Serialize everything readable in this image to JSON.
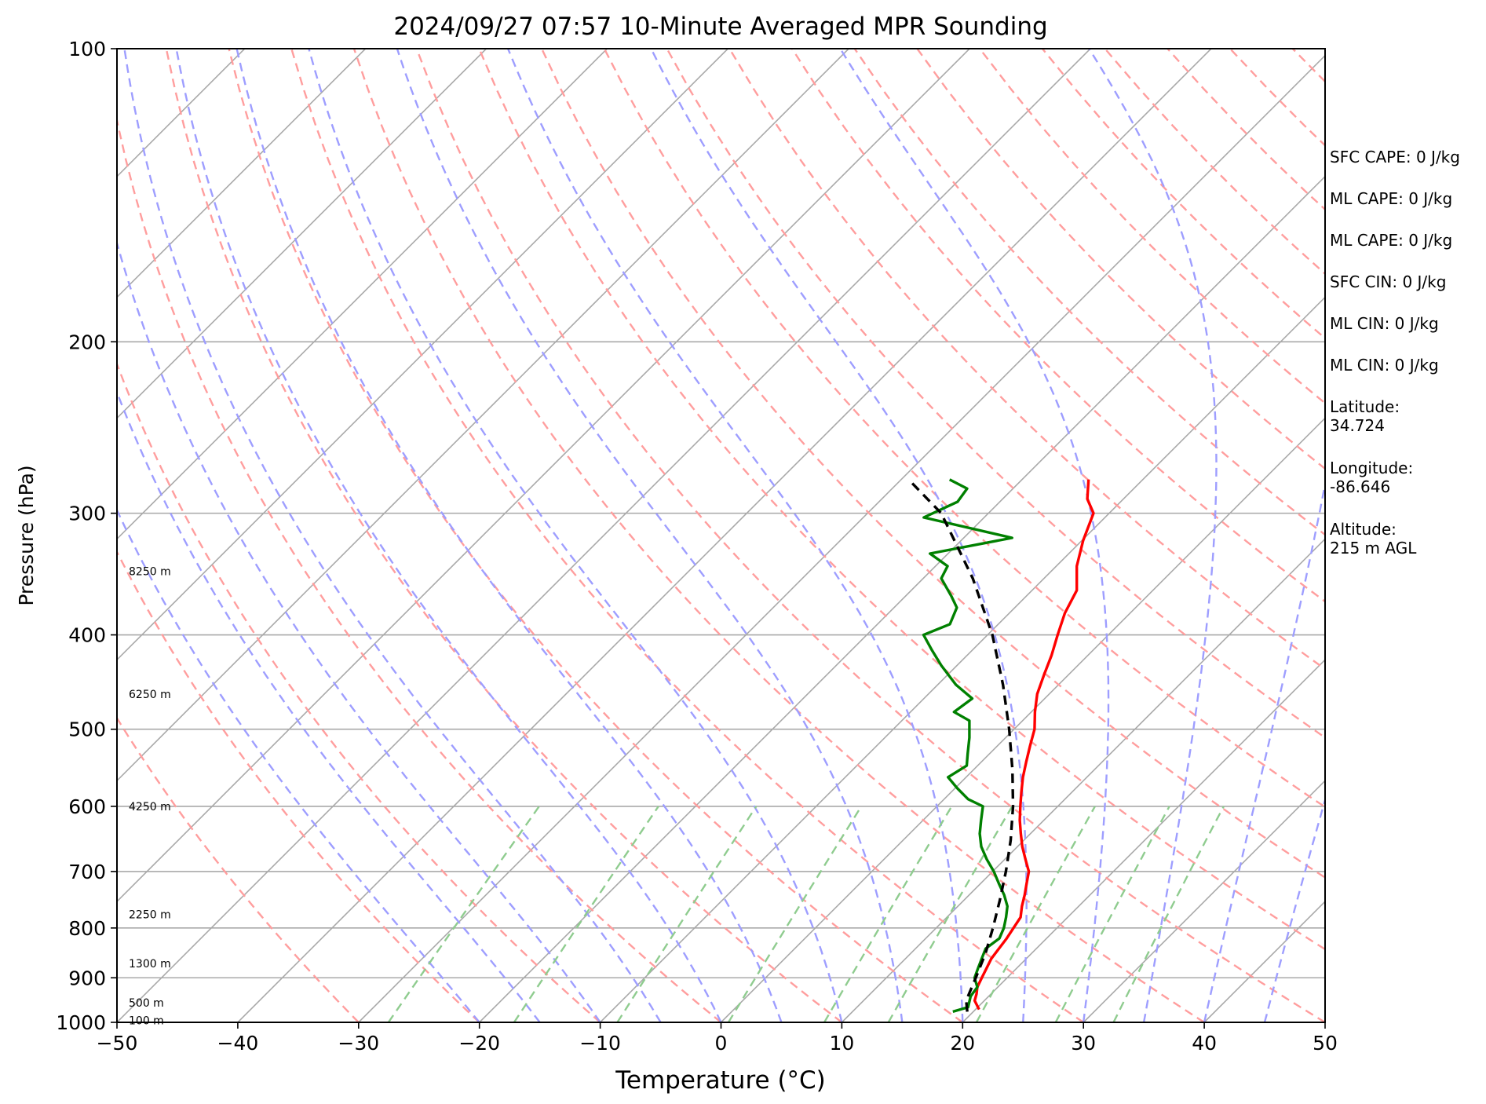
{
  "chart_data": {
    "type": "line",
    "chart_kind": "skew-T log-P sounding",
    "title": "2024/09/27 07:57 10-Minute Averaged MPR Sounding",
    "xlabel": "Temperature (°C)",
    "ylabel": "Pressure (hPa)",
    "xlim": [
      -50,
      50
    ],
    "ylim": [
      1000,
      100
    ],
    "y_scale": "log",
    "grid": true,
    "x_ticks": [
      "−50",
      "−40",
      "−30",
      "−20",
      "−10",
      "0",
      "10",
      "20",
      "30",
      "40",
      "50"
    ],
    "y_ticks": [
      "100",
      "200",
      "300",
      "400",
      "500",
      "600",
      "700",
      "800",
      "900",
      "1000"
    ],
    "height_labels": [
      {
        "p": 995,
        "label": "100 m"
      },
      {
        "p": 955,
        "label": "500 m"
      },
      {
        "p": 870,
        "label": "1300 m"
      },
      {
        "p": 775,
        "label": "2250 m"
      },
      {
        "p": 600,
        "label": "4250 m"
      },
      {
        "p": 460,
        "label": "6250 m"
      },
      {
        "p": 344,
        "label": "8250 m"
      }
    ],
    "series": [
      {
        "role": "temperature",
        "color": "#ff0000",
        "points": [
          [
            20.3,
            970
          ],
          [
            19.2,
            950
          ],
          [
            18.8,
            935
          ],
          [
            18.3,
            920
          ],
          [
            17.9,
            900
          ],
          [
            17.5,
            880
          ],
          [
            17.1,
            860
          ],
          [
            16.9,
            840
          ],
          [
            16.7,
            820
          ],
          [
            16.4,
            800
          ],
          [
            16.1,
            780
          ],
          [
            15.3,
            760
          ],
          [
            14.6,
            740
          ],
          [
            13.8,
            720
          ],
          [
            13.0,
            700
          ],
          [
            11.7,
            680
          ],
          [
            10.4,
            660
          ],
          [
            9.2,
            640
          ],
          [
            8.0,
            620
          ],
          [
            6.9,
            600
          ],
          [
            5.8,
            580
          ],
          [
            4.7,
            560
          ],
          [
            3.7,
            540
          ],
          [
            2.7,
            520
          ],
          [
            1.7,
            500
          ],
          [
            0.3,
            480
          ],
          [
            -1.0,
            460
          ],
          [
            -2.0,
            440
          ],
          [
            -3.0,
            420
          ],
          [
            -4.2,
            400
          ],
          [
            -5.4,
            380
          ],
          [
            -6.3,
            360
          ],
          [
            -8.3,
            340
          ],
          [
            -9.9,
            320
          ],
          [
            -11.3,
            300
          ],
          [
            -13.0,
            290
          ],
          [
            -14.5,
            277
          ]
        ]
      },
      {
        "role": "dewpoint",
        "color": "#008000",
        "points": [
          [
            18.3,
            975
          ],
          [
            19.2,
            965
          ],
          [
            18.5,
            940
          ],
          [
            18.3,
            920
          ],
          [
            17.3,
            900
          ],
          [
            16.8,
            880
          ],
          [
            16.3,
            860
          ],
          [
            15.8,
            840
          ],
          [
            16.1,
            820
          ],
          [
            15.6,
            800
          ],
          [
            14.9,
            780
          ],
          [
            14.1,
            760
          ],
          [
            12.9,
            740
          ],
          [
            11.5,
            720
          ],
          [
            10.1,
            700
          ],
          [
            8.5,
            680
          ],
          [
            7.0,
            660
          ],
          [
            5.8,
            640
          ],
          [
            4.8,
            620
          ],
          [
            3.8,
            600
          ],
          [
            2.0,
            590
          ],
          [
            0.2,
            575
          ],
          [
            -1.5,
            560
          ],
          [
            -0.9,
            545
          ],
          [
            -1.8,
            530
          ],
          [
            -3.0,
            510
          ],
          [
            -4.4,
            490
          ],
          [
            -6.4,
            480
          ],
          [
            -6.0,
            465
          ],
          [
            -8.5,
            450
          ],
          [
            -11.3,
            430
          ],
          [
            -13.3,
            415
          ],
          [
            -15.3,
            400
          ],
          [
            -14.0,
            390
          ],
          [
            -14.8,
            375
          ],
          [
            -16.2,
            365
          ],
          [
            -18.5,
            350
          ],
          [
            -19.0,
            340
          ],
          [
            -21.5,
            330
          ],
          [
            -16.0,
            318
          ],
          [
            -25.0,
            303
          ],
          [
            -23.5,
            292
          ],
          [
            -23.8,
            283
          ],
          [
            -26.0,
            277
          ]
        ]
      },
      {
        "role": "parcel",
        "color": "#000000",
        "points": [
          [
            19.5,
            975
          ],
          [
            18.5,
            950
          ],
          [
            17.4,
            900
          ],
          [
            16.2,
            850
          ],
          [
            14.7,
            800
          ],
          [
            13.0,
            750
          ],
          [
            11.1,
            700
          ],
          [
            8.9,
            650
          ],
          [
            6.3,
            600
          ],
          [
            3.2,
            550
          ],
          [
            -0.4,
            500
          ],
          [
            -4.6,
            450
          ],
          [
            -9.6,
            400
          ],
          [
            -15.9,
            350
          ],
          [
            -23.9,
            300
          ],
          [
            -29.4,
            277
          ]
        ]
      }
    ]
  },
  "info_panel": {
    "items": [
      "SFC CAPE: 0 J/kg",
      "ML CAPE: 0 J/kg",
      "ML CAPE: 0 J/kg",
      "SFC CIN: 0 J/kg",
      "ML CIN: 0 J/kg",
      "ML CIN: 0 J/kg"
    ],
    "latitude": "Latitude:\n34.724",
    "longitude": "Longitude:\n-86.646",
    "altitude": "Altitude:\n215 m AGL"
  },
  "colors": {
    "isotherm": "#a9a9a9",
    "dry_adiabat": "#ff9e9e",
    "moist_adiabat": "#9e9eff",
    "mixing_ratio": "#8fcc8f"
  }
}
